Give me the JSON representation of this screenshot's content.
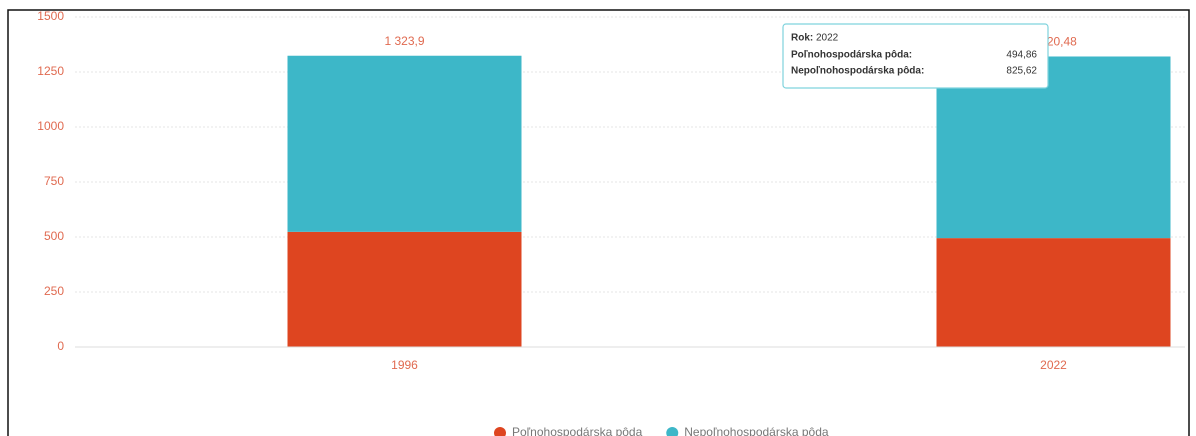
{
  "chart_data": {
    "type": "stacked_bar",
    "categories": [
      "1996",
      "2022"
    ],
    "series": [
      {
        "name": "Poľnohospodárska pôda",
        "color": "#de4520",
        "values": [
          523.5,
          494.86
        ]
      },
      {
        "name": "Nepoľnohospodárska pôda",
        "color": "#3db7c8",
        "values": [
          800.4,
          825.62
        ]
      }
    ],
    "totals": {
      "values": [
        1323.9,
        1320.48
      ],
      "value_labels": [
        "1 323,9",
        "1 320,48"
      ]
    },
    "ylim": [
      0,
      1500
    ],
    "yticks": [
      0,
      250,
      500,
      750,
      1000,
      1250,
      1500
    ],
    "grid": true,
    "legend": "bottom",
    "tooltip": {
      "title_label": "Rok:",
      "title_value": "2022",
      "rows": [
        {
          "label": "Poľnohospodárska pôda:",
          "value": "494,86"
        },
        {
          "label": "Nepoľnohospodárska pôda:",
          "value": "825,62"
        }
      ]
    }
  }
}
